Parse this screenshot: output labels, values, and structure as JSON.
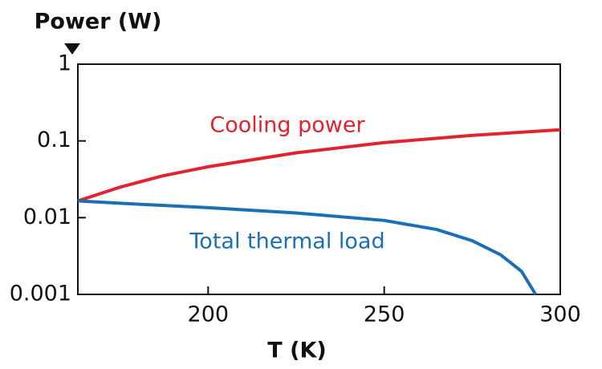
{
  "chart_data": {
    "type": "line",
    "y_label": "Power (W)",
    "x_label": "T (K)",
    "yscale": "log",
    "grid": false,
    "xlim": [
      163,
      300
    ],
    "xticks": [
      200,
      250,
      300
    ],
    "ylim": [
      0.001,
      1
    ],
    "yticks": [
      1,
      0.1,
      0.01,
      0.001
    ],
    "series": [
      {
        "name": "Cooling power",
        "color": "#e2222f",
        "x": [
          163,
          175,
          187,
          200,
          225,
          250,
          275,
          300
        ],
        "values": [
          0.0165,
          0.025,
          0.035,
          0.046,
          0.07,
          0.095,
          0.118,
          0.14
        ]
      },
      {
        "name": "Total thermal load",
        "color": "#1a6fb5",
        "x": [
          163,
          180,
          200,
          225,
          250,
          265,
          275,
          283,
          289,
          293
        ],
        "values": [
          0.0165,
          0.015,
          0.0135,
          0.0115,
          0.0092,
          0.007,
          0.005,
          0.0033,
          0.002,
          0.001
        ]
      }
    ]
  }
}
